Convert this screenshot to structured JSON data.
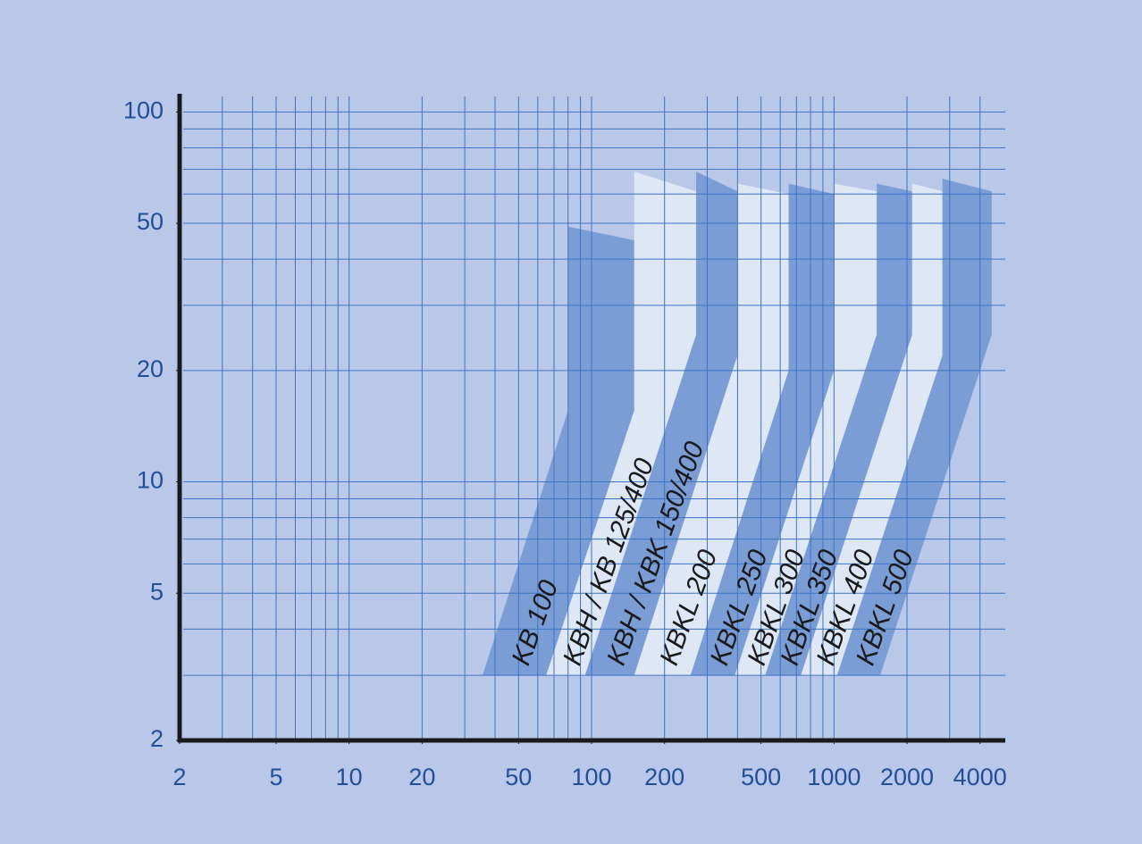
{
  "chart_data": {
    "type": "area",
    "xlim": [
      2,
      5000
    ],
    "ylim": [
      2,
      112
    ],
    "log_x": true,
    "log_y": true,
    "xticks": [
      2,
      5,
      10,
      20,
      50,
      100,
      200,
      500,
      1000,
      2000,
      4000
    ],
    "yticks": [
      2,
      5,
      10,
      20,
      50,
      100
    ],
    "xgrid": [
      3,
      4,
      5,
      6,
      7,
      8,
      9,
      10,
      20,
      30,
      40,
      50,
      60,
      70,
      80,
      90,
      100,
      200,
      300,
      400,
      500,
      600,
      700,
      800,
      900,
      1000,
      2000,
      3000,
      4000
    ],
    "ygrid": [
      3,
      4,
      5,
      6,
      7,
      8,
      9,
      10,
      20,
      30,
      40,
      50,
      60,
      70,
      80,
      90,
      100
    ],
    "grid_color": "#3a74c6",
    "axis_color": "#1a1a1a",
    "series": [
      {
        "name": "KB 100",
        "color": "#7b9dd6",
        "x": [
          35.5,
          80,
          80,
          150,
          150,
          65
        ],
        "y": [
          3,
          15.6,
          49,
          45,
          15.6,
          3
        ]
      },
      {
        "name": "KBH / KB 125/400",
        "color": "#dfe6f4",
        "x": [
          65,
          150,
          150,
          270,
          270,
          94
        ],
        "y": [
          3,
          15.6,
          69,
          61,
          25,
          3
        ]
      },
      {
        "name": "KBH / KBK 150/400",
        "color": "#7b9dd6",
        "x": [
          94,
          270,
          270,
          400,
          400,
          150
        ],
        "y": [
          3,
          25,
          69,
          61,
          22,
          3
        ]
      },
      {
        "name": "KBKL 200",
        "color": "#dfe6f4",
        "x": [
          150,
          400,
          400,
          650,
          650,
          256
        ],
        "y": [
          3,
          22,
          64,
          60,
          20,
          3
        ]
      },
      {
        "name": "KBKL 250",
        "color": "#7b9dd6",
        "x": [
          256,
          650,
          650,
          1000,
          1000,
          390
        ],
        "y": [
          3,
          20,
          64,
          60,
          20,
          3
        ]
      },
      {
        "name": "KBKL 300",
        "color": "#dfe6f4",
        "x": [
          390,
          1000,
          1000,
          1500,
          1500,
          520
        ],
        "y": [
          3,
          20,
          64,
          61,
          25,
          3
        ]
      },
      {
        "name": "KBKL 350",
        "color": "#7b9dd6",
        "x": [
          520,
          1500,
          1500,
          2100,
          2100,
          730
        ],
        "y": [
          3,
          25,
          64,
          61,
          25,
          3
        ]
      },
      {
        "name": "KBKL 400",
        "color": "#dfe6f4",
        "x": [
          730,
          2100,
          2100,
          2800,
          2800,
          1030
        ],
        "y": [
          3,
          25,
          64,
          61,
          22,
          3
        ]
      },
      {
        "name": "KBKL 500",
        "color": "#7b9dd6",
        "x": [
          1030,
          2800,
          2800,
          4470,
          4470,
          1550
        ],
        "y": [
          3,
          22,
          66,
          61,
          25,
          3
        ]
      }
    ]
  }
}
